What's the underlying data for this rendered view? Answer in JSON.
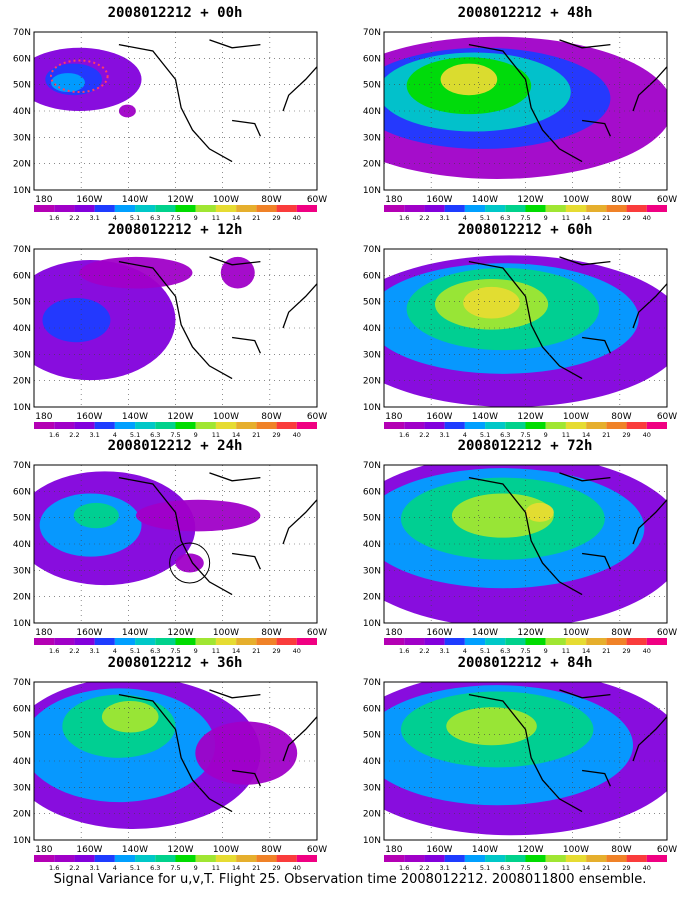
{
  "panels": [
    {
      "title": "2008012212 + 00h"
    },
    {
      "title": "2008012212 + 48h"
    },
    {
      "title": "2008012212 + 12h"
    },
    {
      "title": "2008012212 + 60h"
    },
    {
      "title": "2008012212 + 24h"
    },
    {
      "title": "2008012212 + 72h"
    },
    {
      "title": "2008012212 + 36h"
    },
    {
      "title": "2008012212 + 84h"
    }
  ],
  "lat_labels": [
    "70N",
    "60N",
    "50N",
    "40N",
    "30N",
    "20N",
    "10N"
  ],
  "lon_labels": [
    "180",
    "160W",
    "140W",
    "120W",
    "100W",
    "80W",
    "60W"
  ],
  "colorbar": {
    "labels": [
      "1.6",
      "2.2",
      "3.1",
      "4",
      "5.1",
      "6.3",
      "7.5",
      "9",
      "11",
      "14",
      "21",
      "29",
      "40"
    ],
    "colors": [
      "#a000c8",
      "#8200dc",
      "#1e3cff",
      "#00a0ff",
      "#00c8c8",
      "#00d28c",
      "#00dc00",
      "#a0e632",
      "#e6dc32",
      "#e6af2d",
      "#f08228",
      "#fa3c3c",
      "#f00082"
    ]
  },
  "caption": "Signal Variance for u,v,T. Flight 25. Observation time 2008012212. 2008011800 ensemble."
}
